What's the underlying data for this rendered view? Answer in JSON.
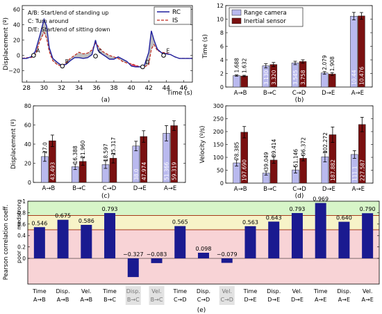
{
  "colors": {
    "rc": "#1f1f9e",
    "is": "#c0281e",
    "rc_bar": "#b9b9ee",
    "is_bar": "#7a1010",
    "pearson_bar": "#1a1a90",
    "zone_strong": "#d7f5c8",
    "zone_med": "#f7f3c8",
    "zone_poor": "#f8d3d6",
    "zone_line": "#a63a1a",
    "shade": "#888888",
    "highlight": "#e02050"
  },
  "chart_data": [
    {
      "id": "a",
      "type": "line",
      "panel_label": "(a)",
      "xlabel": "Time (s)",
      "ylabel": "Displacement (º)",
      "xlim": [
        27.5,
        47
      ],
      "ylim": [
        -35,
        65
      ],
      "xticks": [
        "28",
        "30",
        "32",
        "34",
        "36",
        "38",
        "40",
        "42",
        "44",
        "46"
      ],
      "yticks": [
        "−20",
        "0",
        "20",
        "40",
        "60"
      ],
      "legend": {
        "position": "top-right",
        "entries": [
          "RC",
          "IS"
        ]
      },
      "annotation_lines": [
        "A/B: Start/end of standing up",
        "C: Turn around",
        "D/E: Start/end of sitting down"
      ],
      "events": [
        {
          "label": "A",
          "x": 28.8,
          "y": 0
        },
        {
          "label": "B",
          "x": 32.1,
          "y": -14
        },
        {
          "label": "C",
          "x": 35.9,
          "y": -1
        },
        {
          "label": "D",
          "x": 41.3,
          "y": -15
        },
        {
          "label": "E",
          "x": 43.7,
          "y": 0
        }
      ],
      "series": [
        {
          "name": "RC",
          "points": [
            [
              27.5,
              -4
            ],
            [
              28,
              -4
            ],
            [
              28.5,
              -2
            ],
            [
              29,
              5
            ],
            [
              29.5,
              25
            ],
            [
              30,
              47
            ],
            [
              30.3,
              38
            ],
            [
              30.6,
              10
            ],
            [
              31,
              -4
            ],
            [
              31.5,
              -9
            ],
            [
              32,
              -13
            ],
            [
              32.5,
              -12
            ],
            [
              33,
              -7
            ],
            [
              33.5,
              -3
            ],
            [
              34,
              -3
            ],
            [
              34.5,
              -4
            ],
            [
              35,
              -3
            ],
            [
              35.5,
              1
            ],
            [
              35.9,
              20
            ],
            [
              36.2,
              6
            ],
            [
              36.6,
              2
            ],
            [
              37,
              -1
            ],
            [
              37.5,
              -5
            ],
            [
              38,
              -5
            ],
            [
              38.5,
              -2
            ],
            [
              39,
              -5
            ],
            [
              39.5,
              -8
            ],
            [
              40,
              -14
            ],
            [
              40.5,
              -15
            ],
            [
              41,
              -15
            ],
            [
              41.5,
              -13
            ],
            [
              42,
              4
            ],
            [
              42.3,
              32
            ],
            [
              42.6,
              20
            ],
            [
              43,
              8
            ],
            [
              43.5,
              3
            ],
            [
              44,
              2
            ],
            [
              44.5,
              1
            ],
            [
              45,
              -2
            ],
            [
              45.5,
              -4
            ],
            [
              46,
              -4
            ],
            [
              47,
              -4
            ]
          ]
        },
        {
          "name": "IS",
          "points": [
            [
              27.5,
              -4
            ],
            [
              28,
              -3
            ],
            [
              28.5,
              -3
            ],
            [
              29,
              0
            ],
            [
              29.5,
              18
            ],
            [
              30,
              30
            ],
            [
              30.3,
              22
            ],
            [
              30.6,
              5
            ],
            [
              31,
              -7
            ],
            [
              31.5,
              -12
            ],
            [
              32,
              -14
            ],
            [
              32.5,
              -10
            ],
            [
              33,
              -4
            ],
            [
              33.5,
              0
            ],
            [
              34,
              4
            ],
            [
              34.5,
              2
            ],
            [
              35,
              3
            ],
            [
              35.5,
              7
            ],
            [
              35.9,
              16
            ],
            [
              36.2,
              12
            ],
            [
              36.6,
              6
            ],
            [
              37,
              3
            ],
            [
              37.5,
              0
            ],
            [
              38,
              -2
            ],
            [
              38.5,
              -4
            ],
            [
              39,
              -8
            ],
            [
              39.5,
              -10
            ],
            [
              40,
              -11
            ],
            [
              40.5,
              -13
            ],
            [
              41,
              -15
            ],
            [
              41.5,
              -15
            ],
            [
              42,
              -12
            ],
            [
              42.3,
              8
            ],
            [
              42.6,
              14
            ],
            [
              43,
              6
            ],
            [
              43.5,
              4
            ],
            [
              44,
              3
            ],
            [
              44.5,
              1
            ],
            [
              45,
              -2
            ],
            [
              45.5,
              -4
            ],
            [
              46,
              -4
            ],
            [
              47,
              -4
            ]
          ]
        }
      ]
    },
    {
      "id": "b",
      "type": "bar",
      "panel_label": "(b)",
      "ylabel": "Time (s)",
      "ylim": [
        0,
        12
      ],
      "yticks": [
        "0",
        "2",
        "4",
        "6",
        "8",
        "10",
        "12"
      ],
      "categories": [
        "A→B",
        "B→C",
        "C→D",
        "D→E",
        "A→E"
      ],
      "legend": {
        "position": "top-left",
        "entries": [
          "Range camera",
          "Inertial sensor"
        ]
      },
      "series": [
        {
          "name": "Range camera",
          "values": [
            1.688,
            3.13,
            3.545,
            2.079,
            10.44
          ],
          "errors": [
            0.1,
            0.3,
            0.25,
            0.2,
            0.55
          ],
          "labels": [
            "1.688",
            "3.130",
            "3.545",
            "2.079",
            "10.44"
          ]
        },
        {
          "name": "Inertial sensor",
          "values": [
            1.632,
            3.32,
            3.758,
            1.908,
            10.476
          ],
          "errors": [
            0.1,
            0.3,
            0.25,
            0.2,
            0.5
          ],
          "labels": [
            "1.632",
            "3.320",
            "3.758",
            "1.908",
            "10.476"
          ]
        }
      ]
    },
    {
      "id": "c",
      "type": "bar",
      "panel_label": "(c)",
      "ylabel": "Displacement (º)",
      "ylim": [
        0,
        80
      ],
      "yticks": [
        "0",
        "20",
        "40",
        "60",
        "80"
      ],
      "categories": [
        "A→B",
        "B→C",
        "C→D",
        "D→E",
        "A→E"
      ],
      "series": [
        {
          "name": "Range camera",
          "values": [
            27,
            16.388,
            18.597,
            38,
            51.366
          ],
          "errors": [
            5,
            3,
            4,
            5,
            8
          ],
          "labels": [
            "27.0",
            "16.388",
            "18.597",
            "38.0",
            "51.366"
          ]
        },
        {
          "name": "Inertial sensor",
          "values": [
            43.493,
            21.96,
            25.317,
            47.974,
            59.319
          ],
          "errors": [
            6,
            4,
            5,
            6,
            5
          ],
          "labels": [
            "43.493",
            "21.960",
            "25.317",
            "47.974",
            "59.319"
          ]
        }
      ]
    },
    {
      "id": "d",
      "type": "bar",
      "panel_label": "(d)",
      "ylabel": "Velocity (º/s)",
      "ylim": [
        0,
        300
      ],
      "yticks": [
        "0",
        "50",
        "100",
        "150",
        "200",
        "250",
        "300"
      ],
      "categories": [
        "A→B",
        "B→C",
        "C→D",
        "D→E",
        "A→E"
      ],
      "series": [
        {
          "name": "Range camera",
          "values": [
            78.385,
            39.049,
            51.146,
            102.272,
            111.1
          ],
          "errors": [
            12,
            8,
            12,
            20,
            15
          ],
          "labels": [
            "78.385",
            "39.049",
            "51.146",
            "102.272",
            "111.1"
          ]
        },
        {
          "name": "Inertial sensor",
          "values": [
            197.69,
            89.414,
            96.372,
            187.882,
            227.587
          ],
          "errors": [
            22,
            12,
            10,
            30,
            28
          ],
          "labels": [
            "197.690",
            "89.414",
            "96.372",
            "187.882",
            "227.587"
          ]
        }
      ]
    },
    {
      "id": "e",
      "type": "bar",
      "panel_label": "(e)",
      "ylabel": "Pearson correlation coeff.",
      "ylim": [
        -0.45,
        1.0
      ],
      "yticks": [
        "0",
        "0.2",
        "0.4",
        "0.6",
        "0.8",
        "1"
      ],
      "zones": [
        {
          "name": "strong",
          "from": 0.75,
          "to": 1.0
        },
        {
          "name": "med.",
          "from": 0.5,
          "to": 0.75
        },
        {
          "name": "poor",
          "from": -0.45,
          "to": 0.5
        }
      ],
      "categories_top": [
        "Time",
        "Disp.",
        "Vel.",
        "Time",
        "Disp.",
        "Vel.",
        "Time",
        "Disp.",
        "Vel.",
        "Time",
        "Disp.",
        "Vel.",
        "Time",
        "Disp.",
        "Vel."
      ],
      "categories_bottom": [
        "A→B",
        "A→B",
        "A→B",
        "B→C",
        "B→C",
        "B→C",
        "C→D",
        "C→D",
        "C→D",
        "D→E",
        "D→E",
        "D→E",
        "A→E",
        "A→E",
        "A→E"
      ],
      "values": [
        0.546,
        0.675,
        0.586,
        0.793,
        -0.327,
        -0.083,
        0.565,
        0.098,
        -0.079,
        0.563,
        0.643,
        0.793,
        0.969,
        0.64,
        0.79
      ],
      "labels": [
        "0.546",
        "0.675",
        "0.586",
        "0.793",
        "−0.327",
        "−0.083",
        "0.565",
        "0.098",
        "−0.079",
        "0.563",
        "0.643",
        "0.793",
        "0.969",
        "0.640",
        "0.790"
      ],
      "grayed": [
        4,
        5,
        8
      ]
    }
  ]
}
